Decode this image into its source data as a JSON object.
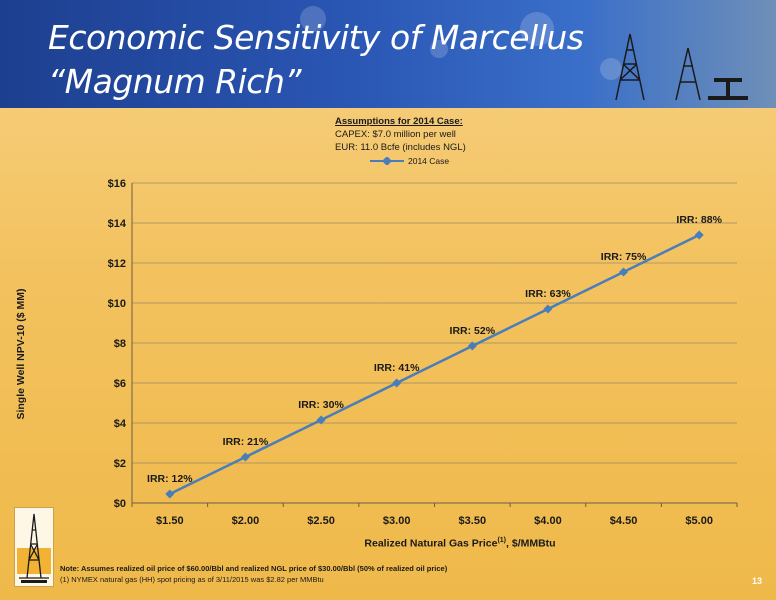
{
  "slide": {
    "title": "Economic Sensitivity of Marcellus “Magnum Rich”",
    "page_number": "13",
    "assumptions": {
      "heading": "Assumptions for 2014 Case:",
      "lines": [
        "CAPEX: $7.0 million per well",
        "EUR: 11.0 Bcfe (includes NGL)"
      ]
    },
    "notes": {
      "line1": "Note: Assumes realized oil price of $60.00/Bbl and realized NGL price of $30.00/Bbl (50% of realized oil price)",
      "line2": "(1) NYMEX natural gas (HH) spot pricing as of 3/11/2015 was $2.82 per MMBtu"
    }
  },
  "chart_data": {
    "type": "line",
    "title": "",
    "xlabel": "Realized Natural Gas Price",
    "xlabel_superscript": "(1)",
    "xlabel_suffix": ", $/MMBtu",
    "ylabel": "Single Well NPV-10 ($ MM)",
    "categories": [
      "$1.50",
      "$2.00",
      "$2.50",
      "$3.00",
      "$3.50",
      "$4.00",
      "$4.50",
      "$5.00"
    ],
    "yticks": [
      "$0",
      "$2",
      "$4",
      "$6",
      "$8",
      "$10",
      "$12",
      "$14",
      "$16"
    ],
    "ylim": [
      0,
      16
    ],
    "grid": true,
    "legend_position": "top-center",
    "series": [
      {
        "name": "2014 Case",
        "color": "#4a7ebb",
        "values": [
          0.45,
          2.3,
          4.15,
          6.0,
          7.85,
          9.7,
          11.55,
          13.4
        ],
        "labels": [
          "IRR: 12%",
          "IRR: 21%",
          "IRR: 30%",
          "IRR: 41%",
          "IRR: 52%",
          "IRR: 63%",
          "IRR: 75%",
          "IRR: 88%"
        ]
      }
    ]
  }
}
